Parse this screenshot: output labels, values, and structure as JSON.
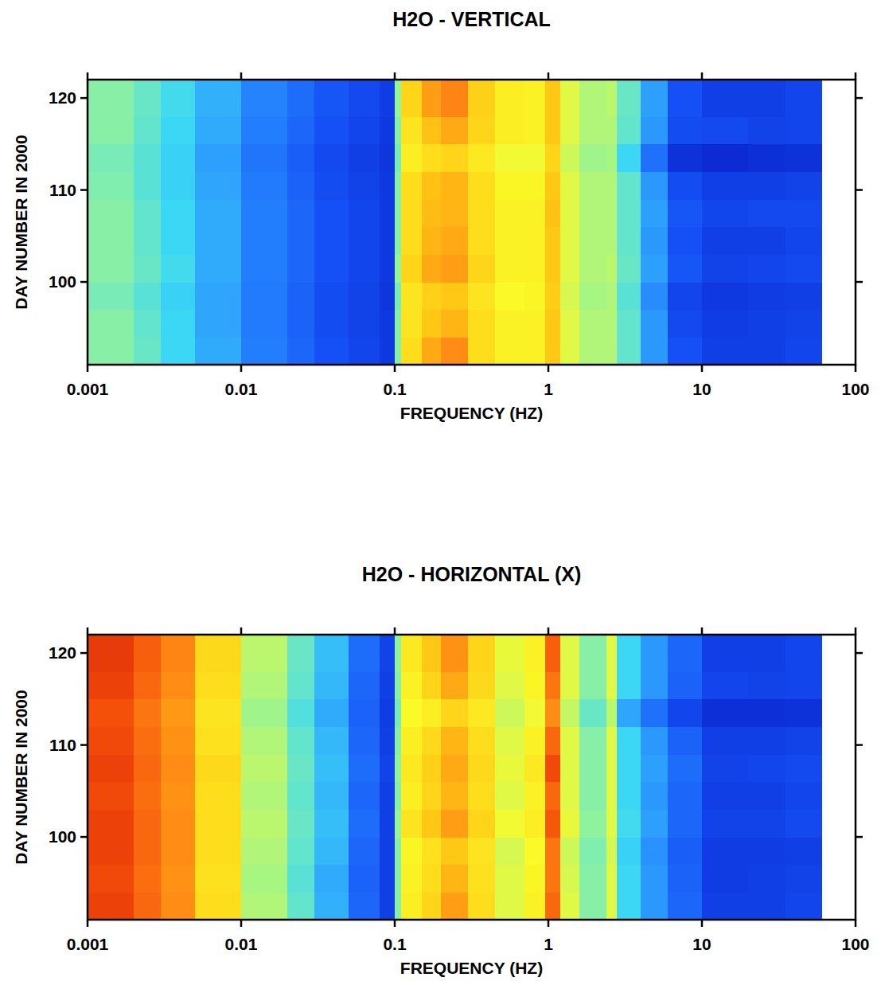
{
  "chart_data": [
    {
      "type": "heatmap",
      "title": "H2O - VERTICAL",
      "x_label": "FREQUENCY (HZ)",
      "y_label": "DAY NUMBER IN 2000",
      "log": "x",
      "xlim": [
        0.001,
        100
      ],
      "xticks": [
        0.001,
        0.01,
        0.1,
        1,
        10,
        100
      ],
      "ylim": [
        91,
        122
      ],
      "yticks": [
        100,
        110,
        120
      ],
      "zlim": [
        0,
        10
      ],
      "x_edges": [
        0.001,
        0.002,
        0.003,
        0.005,
        0.01,
        0.02,
        0.03,
        0.05,
        0.08,
        0.1,
        0.11,
        0.15,
        0.2,
        0.3,
        0.45,
        0.7,
        0.95,
        1.2,
        1.6,
        2.4,
        2.8,
        4,
        6,
        10,
        20,
        35,
        60
      ],
      "y_edges": [
        91,
        94,
        97,
        100,
        103,
        106,
        109,
        112,
        115,
        118,
        122
      ],
      "values": [
        [
          5,
          4.6,
          4,
          3.3,
          2.5,
          2,
          1.5,
          1.2,
          0.8,
          5,
          7,
          8,
          8.5,
          7,
          6.5,
          6.5,
          7.5,
          6,
          5.5,
          5.5,
          4.5,
          3,
          1.5,
          1,
          1,
          1.2
        ],
        [
          5,
          4.5,
          4,
          3.2,
          2.4,
          1.9,
          1.4,
          1.1,
          0.8,
          5,
          6.8,
          7.5,
          7.8,
          7,
          6.5,
          6.5,
          7.5,
          6,
          5.5,
          5.5,
          4.5,
          3,
          1.3,
          0.9,
          1,
          1.1
        ],
        [
          4.8,
          4.4,
          3.9,
          3.2,
          2.4,
          1.9,
          1.4,
          1.1,
          0.7,
          4.8,
          6.8,
          7.3,
          7.5,
          6.8,
          6.3,
          6.4,
          7.4,
          5.9,
          5.4,
          5.5,
          4.4,
          2.8,
          1.2,
          0.8,
          0.9,
          1
        ],
        [
          5,
          4.6,
          4.1,
          3.3,
          2.5,
          2,
          1.5,
          1.2,
          0.8,
          5.2,
          7.2,
          8,
          8.2,
          7.2,
          6.5,
          6.5,
          7.5,
          6,
          5.5,
          5.6,
          4.6,
          3.1,
          1.6,
          1.1,
          1.2,
          1.3
        ],
        [
          5,
          4.5,
          4,
          3.3,
          2.5,
          2,
          1.5,
          1.2,
          0.8,
          5,
          7,
          7.8,
          8,
          7,
          6.5,
          6.5,
          7.5,
          6,
          5.5,
          5.5,
          4.5,
          3,
          1.5,
          1,
          1,
          1.2
        ],
        [
          5,
          4.5,
          4,
          3.3,
          2.5,
          2,
          1.5,
          1.2,
          0.8,
          5,
          7,
          7.7,
          7.8,
          7,
          6.5,
          6.5,
          7.6,
          6,
          5.5,
          5.5,
          4.5,
          3.1,
          1.6,
          1.2,
          1.3,
          1.3
        ],
        [
          4.9,
          4.4,
          3.9,
          3.2,
          2.4,
          1.9,
          1.4,
          1.1,
          0.8,
          5,
          7,
          7.6,
          7.8,
          7,
          6.4,
          6.4,
          7.5,
          6,
          5.5,
          5.5,
          4.5,
          3,
          1.4,
          1,
          1,
          1.1
        ],
        [
          4.8,
          4.4,
          3.9,
          3.1,
          2.3,
          1.8,
          1.3,
          1,
          0.7,
          4.8,
          6.6,
          7,
          7.2,
          6.7,
          6.2,
          6.2,
          7.2,
          5.8,
          5.3,
          5.4,
          4,
          2.2,
          0.6,
          0.4,
          0.5,
          0.6
        ],
        [
          5,
          4.5,
          4,
          3.3,
          2.5,
          2,
          1.5,
          1.2,
          0.8,
          5,
          6.8,
          7.6,
          8,
          7.2,
          6.6,
          6.5,
          7.5,
          6,
          5.5,
          5.5,
          4.5,
          3,
          1.4,
          1.3,
          1.1,
          1.2
        ],
        [
          5,
          4.6,
          4.1,
          3.4,
          2.6,
          2.1,
          1.6,
          1.3,
          0.9,
          5.2,
          7.2,
          8.2,
          8.6,
          7.3,
          6.6,
          6.5,
          7.5,
          6,
          5.5,
          5.6,
          4.6,
          3.1,
          1.5,
          1,
          1,
          1.2
        ]
      ]
    },
    {
      "type": "heatmap",
      "title": "H2O - HORIZONTAL (X)",
      "x_label": "FREQUENCY (HZ)",
      "y_label": "DAY NUMBER IN 2000",
      "log": "x",
      "xlim": [
        0.001,
        100
      ],
      "xticks": [
        0.001,
        0.01,
        0.1,
        1,
        10,
        100
      ],
      "ylim": [
        91,
        122
      ],
      "yticks": [
        100,
        110,
        120
      ],
      "zlim": [
        0,
        10
      ],
      "x_edges": [
        0.001,
        0.002,
        0.003,
        0.005,
        0.01,
        0.02,
        0.03,
        0.05,
        0.08,
        0.1,
        0.11,
        0.15,
        0.2,
        0.3,
        0.45,
        0.7,
        0.95,
        1.2,
        1.6,
        2.4,
        2.8,
        4,
        6,
        10,
        20,
        35,
        60
      ],
      "y_edges": [
        91,
        94,
        97,
        100,
        103,
        106,
        109,
        112,
        115,
        118,
        122
      ],
      "values": [
        [
          9.5,
          9,
          8.5,
          7,
          5.5,
          4.5,
          3.4,
          2,
          1,
          5,
          6.6,
          7.2,
          8.2,
          7,
          6,
          6.5,
          9,
          6,
          5,
          6,
          4,
          3,
          2,
          1,
          1,
          1.2
        ],
        [
          9.4,
          8.9,
          8.4,
          6.9,
          5.4,
          4.4,
          3.3,
          1.9,
          1,
          5,
          6.5,
          7,
          7.8,
          6.9,
          6,
          6.4,
          8.8,
          5.9,
          5,
          6,
          4,
          3,
          1.9,
          0.9,
          1,
          1.1
        ],
        [
          9.5,
          9,
          8.5,
          7,
          5.5,
          4.5,
          3.5,
          2,
          1,
          5,
          6.4,
          6.9,
          7.5,
          6.8,
          5.9,
          6.3,
          8.8,
          5.8,
          4.9,
          5.9,
          3.9,
          2.9,
          1.8,
          0.9,
          0.9,
          1
        ],
        [
          9.5,
          9,
          8.5,
          7,
          5.6,
          4.6,
          3.6,
          2.1,
          1,
          5.2,
          6.8,
          7.5,
          8.2,
          7.2,
          6.2,
          6.6,
          9.2,
          6.1,
          5.1,
          6,
          4.1,
          3.1,
          2,
          1.1,
          1.1,
          1.3
        ],
        [
          9.4,
          8.9,
          8.4,
          7,
          5.5,
          4.5,
          3.5,
          2,
          1,
          5,
          6.6,
          7.2,
          7.8,
          7,
          6,
          6.5,
          9,
          6,
          5,
          6,
          4,
          3,
          2,
          1,
          1,
          1.2
        ],
        [
          9.5,
          9,
          8.5,
          7.1,
          5.6,
          4.6,
          3.6,
          2.1,
          1.1,
          5.1,
          6.7,
          7.3,
          8,
          7.1,
          6.1,
          6.7,
          9.4,
          6,
          5,
          6,
          4,
          3.1,
          2.1,
          1.1,
          1.2,
          1.3
        ],
        [
          9.4,
          8.9,
          8.4,
          6.9,
          5.5,
          4.5,
          3.5,
          2,
          1,
          5,
          6.6,
          7.1,
          7.8,
          7,
          6,
          6.5,
          9,
          6,
          5,
          6,
          4,
          3,
          1.9,
          1,
          1,
          1.1
        ],
        [
          9.3,
          8.8,
          8.3,
          6.8,
          5.3,
          4.3,
          3.3,
          1.9,
          0.9,
          4.8,
          6.3,
          6.6,
          7.2,
          6.7,
          5.8,
          6.2,
          8.5,
          5.7,
          4.6,
          5.6,
          3.2,
          2.2,
          1.2,
          0.5,
          0.5,
          0.6
        ],
        [
          9.5,
          9,
          8.5,
          7,
          5.5,
          4.5,
          3.5,
          2,
          1,
          5,
          6.5,
          7.2,
          8,
          7.1,
          6,
          6.4,
          8.8,
          6,
          5,
          6,
          4,
          3,
          1.9,
          1.2,
          1.1,
          1.2
        ],
        [
          9.6,
          9.1,
          8.6,
          7.1,
          5.6,
          4.6,
          3.6,
          2.1,
          1.1,
          5.1,
          6.7,
          7.5,
          8.4,
          7.2,
          6.1,
          6.5,
          9.1,
          6,
          5,
          6,
          4,
          3,
          2,
          1,
          1,
          1.2
        ]
      ]
    }
  ]
}
